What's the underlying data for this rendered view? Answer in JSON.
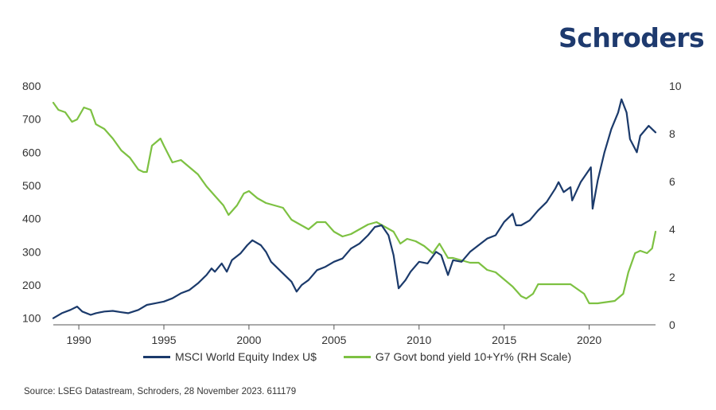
{
  "brand": {
    "name": "Schroders"
  },
  "source": "Source: LSEG Datastream, Schroders, 28 November 2023. 611179",
  "colors": {
    "msci": "#1b3a6b",
    "g7": "#7dc142"
  },
  "chart_data": {
    "type": "line",
    "title": "",
    "xlabel": "",
    "ylabel": "",
    "legend_placement": "bottom",
    "grid": false,
    "x_ticks": [
      "1990",
      "1995",
      "2000",
      "2005",
      "2010",
      "2015",
      "2020"
    ],
    "xlim": [
      1988.5,
      2023.9
    ],
    "y_left": {
      "ticks": [
        "100",
        "200",
        "300",
        "400",
        "500",
        "600",
        "700",
        "800"
      ],
      "lim": [
        80,
        800
      ]
    },
    "y_right": {
      "ticks": [
        "0",
        "2",
        "4",
        "6",
        "8",
        "10"
      ],
      "lim": [
        0,
        10
      ]
    },
    "series": [
      {
        "name": "MSCI World Equity Index U$",
        "axis": "left",
        "x": [
          1988.5,
          1989.0,
          1989.5,
          1989.9,
          1990.2,
          1990.7,
          1991.0,
          1991.5,
          1992.0,
          1992.5,
          1992.9,
          1993.5,
          1994.0,
          1994.5,
          1995.0,
          1995.5,
          1996.0,
          1996.5,
          1997.0,
          1997.5,
          1997.8,
          1998.0,
          1998.4,
          1998.7,
          1999.0,
          1999.5,
          1999.9,
          2000.2,
          2000.7,
          2001.0,
          2001.3,
          2001.7,
          2002.0,
          2002.5,
          2002.8,
          2003.1,
          2003.5,
          2004.0,
          2004.5,
          2005.0,
          2005.5,
          2006.0,
          2006.5,
          2007.0,
          2007.4,
          2007.8,
          2008.2,
          2008.5,
          2008.8,
          2009.2,
          2009.5,
          2010.0,
          2010.5,
          2011.0,
          2011.3,
          2011.7,
          2012.0,
          2012.5,
          2013.0,
          2013.5,
          2014.0,
          2014.5,
          2015.0,
          2015.5,
          2015.7,
          2016.0,
          2016.5,
          2017.0,
          2017.5,
          2018.0,
          2018.2,
          2018.5,
          2018.9,
          2019.0,
          2019.5,
          2019.9,
          2020.1,
          2020.2,
          2020.5,
          2020.9,
          2021.3,
          2021.7,
          2021.9,
          2022.2,
          2022.4,
          2022.8,
          2023.0,
          2023.5,
          2023.7,
          2023.9
        ],
        "values": [
          100,
          115,
          125,
          135,
          120,
          110,
          115,
          120,
          122,
          118,
          115,
          125,
          140,
          145,
          150,
          160,
          175,
          185,
          205,
          230,
          250,
          240,
          265,
          240,
          275,
          295,
          320,
          335,
          320,
          300,
          270,
          250,
          235,
          210,
          180,
          200,
          215,
          245,
          255,
          270,
          280,
          310,
          325,
          350,
          375,
          380,
          350,
          290,
          190,
          215,
          240,
          270,
          265,
          300,
          290,
          230,
          275,
          270,
          300,
          320,
          340,
          350,
          390,
          415,
          380,
          380,
          395,
          425,
          450,
          490,
          510,
          480,
          495,
          455,
          510,
          540,
          555,
          430,
          515,
          600,
          670,
          720,
          760,
          720,
          640,
          600,
          650,
          680,
          670,
          660
        ]
      },
      {
        "name": "G7 Govt bond yield 10+Yr% (RH Scale)",
        "axis": "right",
        "x": [
          1988.5,
          1988.8,
          1989.2,
          1989.6,
          1989.9,
          1990.3,
          1990.7,
          1991.0,
          1991.5,
          1992.0,
          1992.5,
          1993.0,
          1993.5,
          1993.8,
          1994.0,
          1994.3,
          1994.8,
          1995.0,
          1995.5,
          1996.0,
          1996.5,
          1997.0,
          1997.5,
          1998.0,
          1998.5,
          1998.8,
          1999.3,
          1999.7,
          2000.0,
          2000.5,
          2001.0,
          2001.5,
          2002.0,
          2002.5,
          2003.0,
          2003.5,
          2004.0,
          2004.5,
          2005.0,
          2005.5,
          2006.0,
          2006.5,
          2007.0,
          2007.5,
          2008.0,
          2008.5,
          2008.9,
          2009.3,
          2009.8,
          2010.3,
          2010.8,
          2011.2,
          2011.7,
          2012.0,
          2012.5,
          2013.0,
          2013.5,
          2014.0,
          2014.5,
          2015.0,
          2015.5,
          2016.0,
          2016.3,
          2016.7,
          2017.0,
          2017.5,
          2018.0,
          2018.5,
          2018.9,
          2019.3,
          2019.7,
          2020.0,
          2020.5,
          2021.0,
          2021.5,
          2022.0,
          2022.3,
          2022.7,
          2023.0,
          2023.4,
          2023.7,
          2023.9
        ],
        "values": [
          9.3,
          9.0,
          8.9,
          8.5,
          8.6,
          9.1,
          9.0,
          8.4,
          8.2,
          7.8,
          7.3,
          7.0,
          6.5,
          6.4,
          6.4,
          7.5,
          7.8,
          7.5,
          6.8,
          6.9,
          6.6,
          6.3,
          5.8,
          5.4,
          5.0,
          4.6,
          5.0,
          5.5,
          5.6,
          5.3,
          5.1,
          5.0,
          4.9,
          4.4,
          4.2,
          4.0,
          4.3,
          4.3,
          3.9,
          3.7,
          3.8,
          4.0,
          4.2,
          4.3,
          4.1,
          3.9,
          3.4,
          3.6,
          3.5,
          3.3,
          3.0,
          3.4,
          2.8,
          2.8,
          2.7,
          2.6,
          2.6,
          2.3,
          2.2,
          1.9,
          1.6,
          1.2,
          1.1,
          1.3,
          1.7,
          1.7,
          1.7,
          1.7,
          1.7,
          1.5,
          1.3,
          0.9,
          0.9,
          0.95,
          1.0,
          1.3,
          2.2,
          3.0,
          3.1,
          3.0,
          3.2,
          3.9
        ]
      }
    ]
  }
}
